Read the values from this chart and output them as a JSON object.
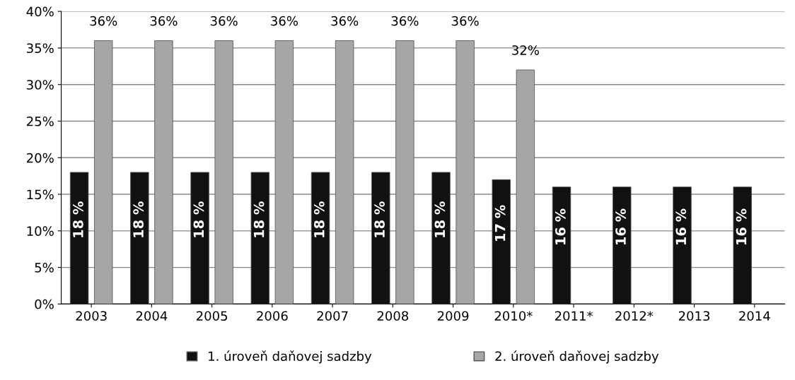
{
  "chart_data": {
    "type": "bar",
    "categories": [
      "2003",
      "2004",
      "2005",
      "2006",
      "2007",
      "2008",
      "2009",
      "2010*",
      "2011*",
      "2012*",
      "2013",
      "2014"
    ],
    "series": [
      {
        "name": "1. úroveň daňovej sadzby",
        "color": "#111111",
        "values": [
          18,
          18,
          18,
          18,
          18,
          18,
          18,
          17,
          16,
          16,
          16,
          16
        ],
        "value_labels": [
          "18 %",
          "18 %",
          "18 %",
          "18 %",
          "18 %",
          "18 %",
          "18 %",
          "17 %",
          "16 %",
          "16 %",
          "16 %",
          "16 %"
        ]
      },
      {
        "name": "2. úroveň daňovej sadzby",
        "color": "#a6a6a6",
        "values": [
          36,
          36,
          36,
          36,
          36,
          36,
          36,
          32,
          null,
          null,
          null,
          null
        ],
        "value_labels": [
          "36%",
          "36%",
          "36%",
          "36%",
          "36%",
          "36%",
          "36%",
          "32%",
          null,
          null,
          null,
          null
        ]
      }
    ],
    "ylim": [
      0,
      40
    ],
    "yticks": [
      {
        "value": 0,
        "label": "0%"
      },
      {
        "value": 5,
        "label": "5%"
      },
      {
        "value": 10,
        "label": "10%"
      },
      {
        "value": 15,
        "label": "15%"
      },
      {
        "value": 20,
        "label": "20%"
      },
      {
        "value": 25,
        "label": "25%"
      },
      {
        "value": 30,
        "label": "30%"
      },
      {
        "value": 35,
        "label": "35%"
      },
      {
        "value": 40,
        "label": "40%"
      }
    ],
    "grid": "y",
    "legend": "bottom"
  }
}
